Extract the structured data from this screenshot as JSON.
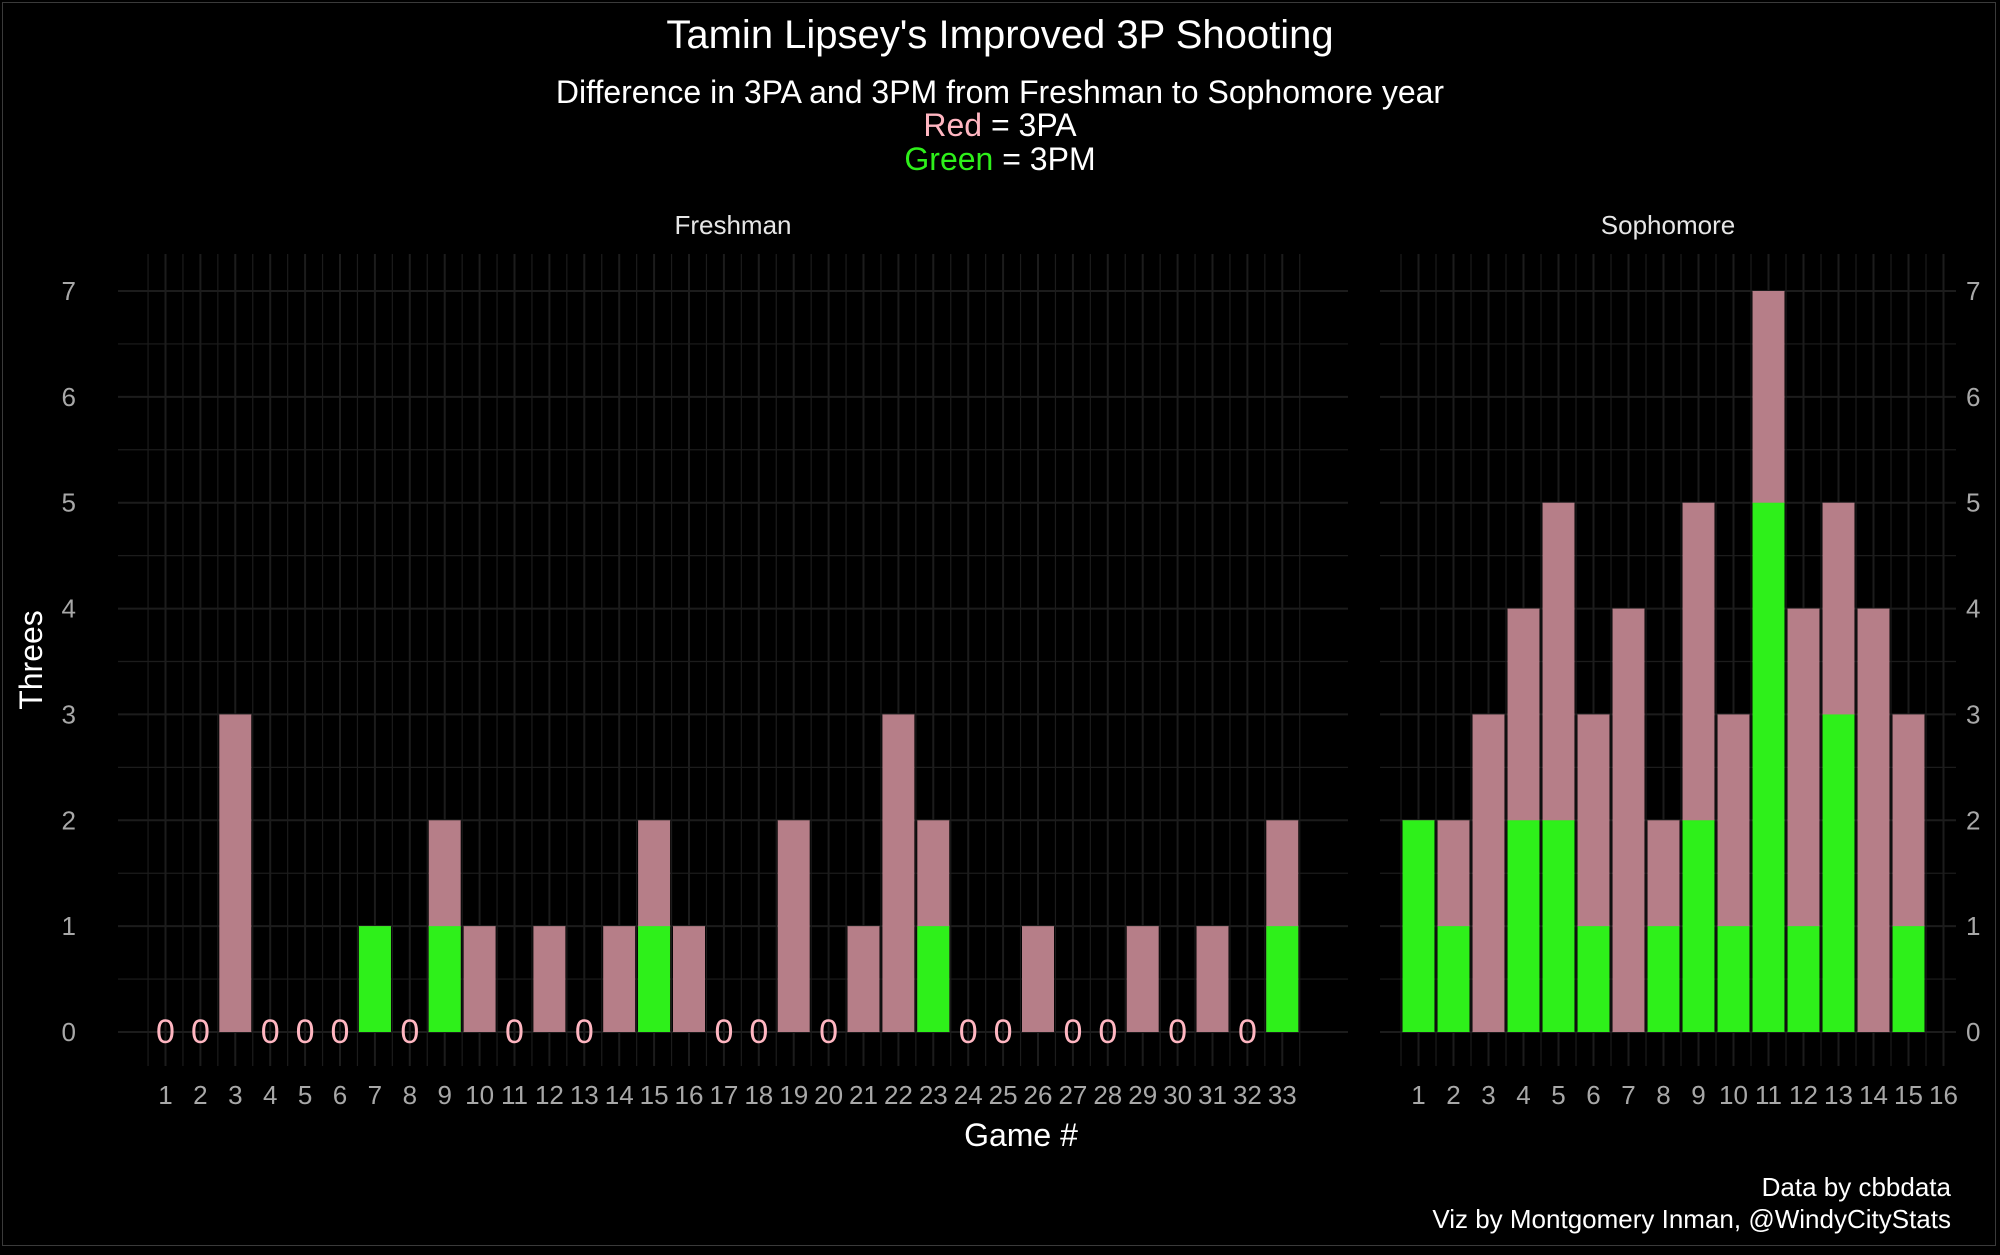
{
  "title": "Tamin Lipsey's Improved 3P Shooting",
  "subtitle": "Difference in 3PA and 3PM from Freshman to Sophomore year",
  "legend": {
    "red_word": "Red",
    "red_rest": " = 3PA",
    "green_word": "Green",
    "green_rest": " = 3PM"
  },
  "caption": [
    "Data by cbbdata",
    "Viz by Montgomery Inman, @WindyCityStats"
  ],
  "colors": {
    "background": "#000000",
    "grid": "#1c1c1c",
    "attempts": "#b67e88",
    "makes": "#2ef01a",
    "zero_label": "#ffb6c1",
    "text": "#ffffff",
    "axis_text": "#a8a8a8"
  },
  "chart_data": {
    "type": "bar",
    "title": "Tamin Lipsey's Improved 3P Shooting",
    "subtitle": "Difference in 3PA and 3PM from Freshman to Sophomore year",
    "xlabel": "Game #",
    "ylabel": "Threes",
    "ylim": [
      0,
      7
    ],
    "yticks": [
      0,
      1,
      2,
      3,
      4,
      5,
      6,
      7
    ],
    "grid": true,
    "legend": "subtitle",
    "zero_label": "0",
    "facets": [
      {
        "name": "Freshman",
        "x_range": [
          0,
          34
        ],
        "x": [
          1,
          2,
          3,
          4,
          5,
          6,
          7,
          8,
          9,
          10,
          11,
          12,
          13,
          14,
          15,
          16,
          17,
          18,
          19,
          20,
          21,
          22,
          23,
          24,
          25,
          26,
          27,
          28,
          29,
          30,
          31,
          32,
          33
        ],
        "series": [
          {
            "name": "3PA",
            "values": [
              0,
              0,
              3,
              0,
              0,
              0,
              1,
              0,
              2,
              1,
              0,
              1,
              0,
              1,
              2,
              1,
              0,
              0,
              2,
              0,
              1,
              3,
              2,
              0,
              0,
              1,
              0,
              0,
              1,
              0,
              1,
              0,
              2
            ]
          },
          {
            "name": "3PM",
            "values": [
              0,
              0,
              0,
              0,
              0,
              0,
              1,
              0,
              1,
              0,
              0,
              0,
              0,
              0,
              1,
              0,
              0,
              0,
              0,
              0,
              0,
              0,
              1,
              0,
              0,
              0,
              0,
              0,
              0,
              0,
              0,
              0,
              1
            ]
          }
        ]
      },
      {
        "name": "Sophomore",
        "x_range": [
          0,
          16
        ],
        "x": [
          1,
          2,
          3,
          4,
          5,
          6,
          7,
          8,
          9,
          10,
          11,
          12,
          13,
          14,
          15
        ],
        "x_tick_labels": [
          1,
          2,
          3,
          4,
          5,
          6,
          7,
          8,
          9,
          10,
          11,
          12,
          13,
          14,
          15,
          16
        ],
        "series": [
          {
            "name": "3PA",
            "values": [
              2,
              2,
              3,
              4,
              5,
              3,
              4,
              2,
              5,
              3,
              7,
              4,
              5,
              4,
              3
            ]
          },
          {
            "name": "3PM",
            "values": [
              2,
              1,
              0,
              2,
              2,
              1,
              0,
              1,
              2,
              1,
              5,
              1,
              3,
              0,
              1
            ]
          }
        ]
      }
    ]
  }
}
